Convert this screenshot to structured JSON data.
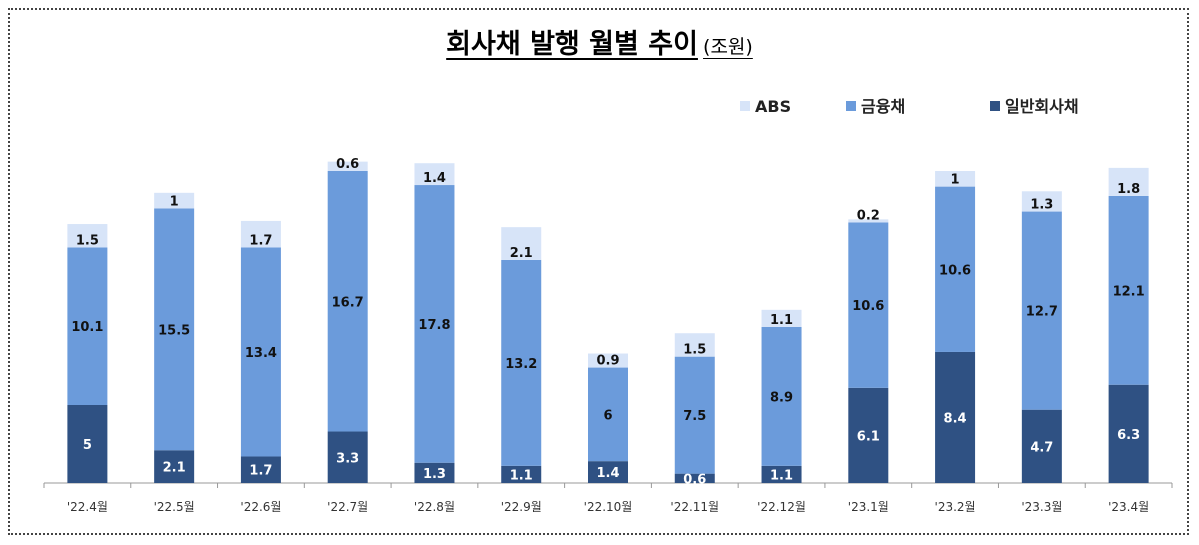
{
  "chart_data": {
    "type": "bar",
    "stacked": true,
    "title": "회사채 발행 월별 추이",
    "unit": "(조원)",
    "categories": [
      "'22.4월",
      "'22.5월",
      "'22.6월",
      "'22.7월",
      "'22.8월",
      "'22.9월",
      "'22.10월",
      "'22.11월",
      "'22.12월",
      "'23.1월",
      "'23.2월",
      "'23.3월",
      "'23.4월"
    ],
    "series": [
      {
        "name": "일반회사채",
        "color": "#2f5183",
        "values": [
          5,
          2.1,
          1.7,
          3.3,
          1.3,
          1.1,
          1.4,
          0.6,
          1.1,
          6.1,
          8.4,
          4.7,
          6.3
        ]
      },
      {
        "name": "금융채",
        "color": "#6b9bdb",
        "values": [
          10.1,
          15.5,
          13.4,
          16.7,
          17.8,
          13.2,
          6,
          7.5,
          8.9,
          10.6,
          10.6,
          12.7,
          12.1
        ]
      },
      {
        "name": "ABS",
        "color": "#d7e4f8",
        "values": [
          1.5,
          1,
          1.7,
          0.6,
          1.4,
          2.1,
          0.9,
          1.5,
          1.1,
          0.2,
          1,
          1.3,
          1.8
        ]
      }
    ],
    "legend_order": [
      "ABS",
      "금융채",
      "일반회사채"
    ],
    "legend_position": "top-right",
    "ylim": [
      0,
      21
    ],
    "grid": false,
    "xlabel": "",
    "ylabel": ""
  }
}
